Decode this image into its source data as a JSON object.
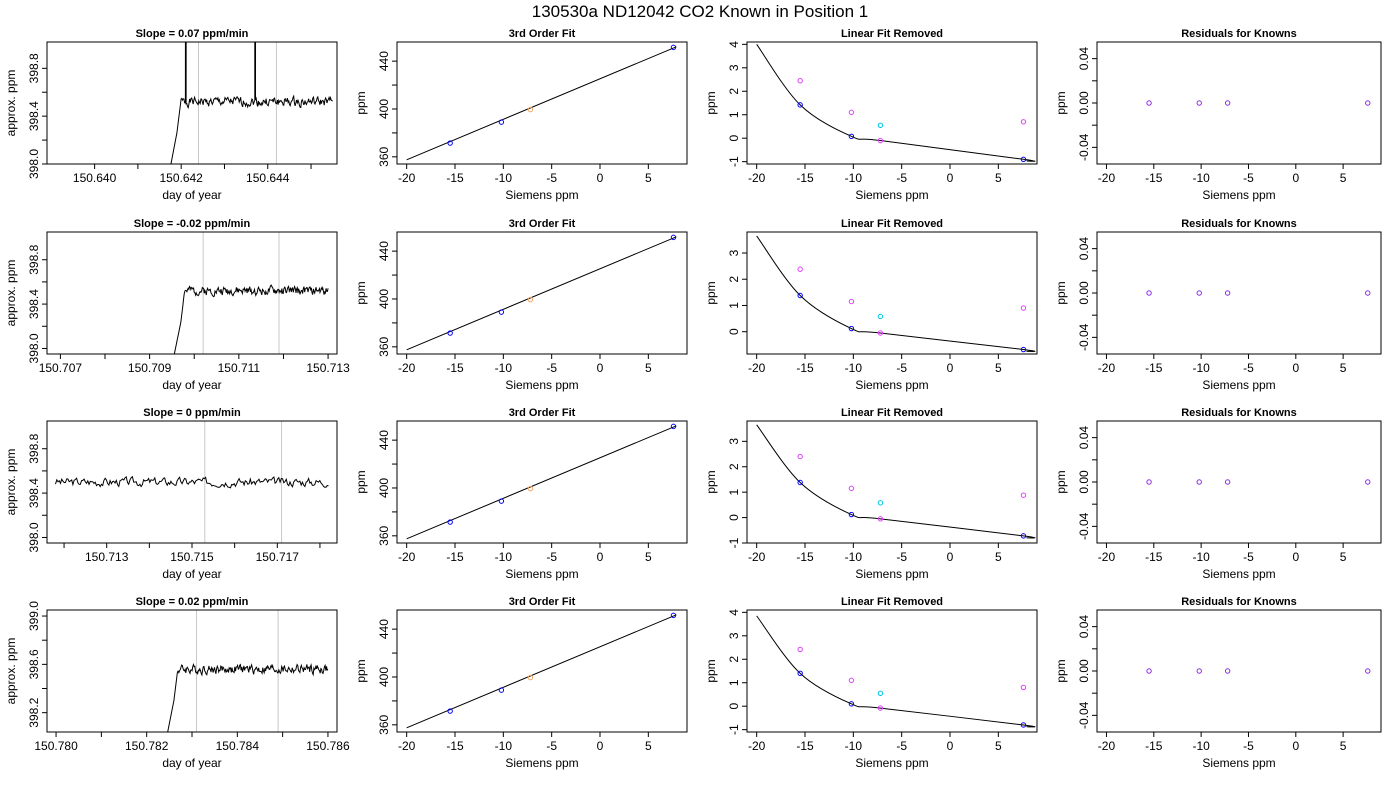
{
  "figure": {
    "title": "130530a     ND12042   CO2 Known in Position  1"
  },
  "colors": {
    "line": "#000000",
    "vline": "#c8c8c8",
    "blue": "#0000ff",
    "purple": "#8a2be2",
    "magenta": "#e040fb",
    "cyan": "#00c8e6",
    "orange": "#f4a460"
  },
  "chart_data": [
    {
      "id": "r0c0",
      "type": "line",
      "title": "Slope =  0.07  ppm/min",
      "xlabel": "day of year",
      "ylabel": "approx. ppm",
      "xlim": [
        150.6389,
        150.6456
      ],
      "ylim": [
        398.0,
        399.02
      ],
      "xticks": [
        150.64,
        150.641,
        150.642,
        150.643,
        150.644,
        150.645
      ],
      "xticklabels": [
        "150.640",
        "",
        "150.642",
        "",
        "150.644",
        ""
      ],
      "yticks": [
        398.0,
        398.2,
        398.4,
        398.6,
        398.8
      ],
      "yticklabels": [
        "398.0",
        "",
        "398.4",
        "",
        "398.8"
      ],
      "vlines": [
        150.6424,
        150.6442
      ],
      "trace": {
        "x_start": 150.6415,
        "x_end": 150.6455,
        "rise_end": 150.6419,
        "baseline": 398.52,
        "noise": 0.06,
        "spikes": [
          150.6421,
          150.6437
        ],
        "seed": 1
      }
    },
    {
      "id": "r1c0",
      "type": "line",
      "title": "Slope =  -0.02  ppm/min",
      "xlabel": "day of year",
      "ylabel": "approx. ppm",
      "xlim": [
        150.7067,
        150.7132
      ],
      "ylim": [
        397.95,
        399.05
      ],
      "xticks": [
        150.707,
        150.708,
        150.709,
        150.71,
        150.711,
        150.712,
        150.713
      ],
      "xticklabels": [
        "150.707",
        "",
        "150.709",
        "",
        "150.711",
        "",
        "150.713"
      ],
      "yticks": [
        398.0,
        398.2,
        398.4,
        398.6,
        398.8
      ],
      "yticklabels": [
        "398.0",
        "",
        "398.4",
        "",
        "398.8"
      ],
      "vlines": [
        150.7102,
        150.7119
      ],
      "trace": {
        "x_start": 150.7093,
        "x_end": 150.713,
        "rise_end": 150.7097,
        "baseline": 398.52,
        "noise": 0.06,
        "spikes": [],
        "seed": 2
      }
    },
    {
      "id": "r2c0",
      "type": "line",
      "title": "Slope =  0  ppm/min",
      "xlabel": "day of year",
      "ylabel": "approx. ppm",
      "xlim": [
        150.7116,
        150.7184
      ],
      "ylim": [
        397.95,
        399.05
      ],
      "xticks": [
        150.712,
        150.713,
        150.714,
        150.715,
        150.716,
        150.717,
        150.718
      ],
      "xticklabels": [
        "",
        "150.713",
        "",
        "150.715",
        "",
        "150.717",
        ""
      ],
      "yticks": [
        398.0,
        398.2,
        398.4,
        398.6,
        398.8
      ],
      "yticklabels": [
        "398.0",
        "",
        "398.4",
        "",
        "398.8"
      ],
      "vlines": [
        150.7153,
        150.7171
      ],
      "trace": {
        "x_start": 150.7118,
        "x_end": 150.7182,
        "rise_end": 150.7118,
        "baseline": 398.5,
        "noise": 0.06,
        "spikes": [],
        "seed": 3
      }
    },
    {
      "id": "r3c0",
      "type": "line",
      "title": "Slope =  0.02  ppm/min",
      "xlabel": "day of year",
      "ylabel": "approx. ppm",
      "xlim": [
        150.7798,
        150.7862
      ],
      "ylim": [
        398.04,
        399.05
      ],
      "xticks": [
        150.78,
        150.781,
        150.782,
        150.783,
        150.784,
        150.785,
        150.786
      ],
      "xticklabels": [
        "150.780",
        "",
        "150.782",
        "",
        "150.784",
        "",
        "150.786"
      ],
      "yticks": [
        398.2,
        398.4,
        398.6,
        398.8,
        399.0
      ],
      "yticklabels": [
        "398.2",
        "",
        "398.6",
        "",
        "399.0"
      ],
      "vlines": [
        150.7831,
        150.7849
      ],
      "trace": {
        "x_start": 150.7822,
        "x_end": 150.786,
        "rise_end": 150.7826,
        "baseline": 398.56,
        "noise": 0.06,
        "spikes": [],
        "seed": 4
      }
    },
    {
      "id": "fit",
      "type": "scatter",
      "title": "3rd Order Fit",
      "xlabel": "Siemens ppm",
      "ylabel": "ppm",
      "xlim": [
        -21.0,
        9.0
      ],
      "ylim": [
        354,
        456
      ],
      "xticks": [
        -20,
        -15,
        -10,
        -5,
        0,
        5
      ],
      "xticklabels": [
        "-20",
        "-15",
        "-10",
        "-5",
        "0",
        "5"
      ],
      "yticks": [
        360,
        380,
        400,
        420,
        440
      ],
      "yticklabels": [
        "360",
        "",
        "400",
        "",
        "440"
      ],
      "line": {
        "x": [
          -20.0,
          7.9
        ],
        "y": [
          357.5,
          452.0
        ]
      },
      "points": [
        {
          "x": -15.5,
          "y": 371.5,
          "color": "blue"
        },
        {
          "x": -10.2,
          "y": 389.0,
          "color": "blue"
        },
        {
          "x": -7.2,
          "y": 399.5,
          "color": "orange"
        },
        {
          "x": 7.6,
          "y": 451.5,
          "color": "blue"
        }
      ]
    },
    {
      "id": "r0c2",
      "type": "scatter",
      "title": "Linear Fit Removed",
      "xlabel": "Siemens ppm",
      "ylabel": "ppm",
      "xlim": [
        -21.0,
        9.0
      ],
      "ylim": [
        -1.1,
        4.1
      ],
      "xticks": [
        -20,
        -15,
        -10,
        -5,
        0,
        5
      ],
      "xticklabels": [
        "-20",
        "-15",
        "-10",
        "-5",
        "0",
        "5"
      ],
      "yticks": [
        -1,
        0,
        1,
        2,
        3,
        4
      ],
      "yticklabels": [
        "-1",
        "0",
        "1",
        "2",
        "3",
        "4"
      ],
      "curve": {
        "x": [
          -20,
          -15.5,
          -10.2,
          -7.2,
          7.6,
          7.9
        ],
        "y": [
          4.0,
          1.42,
          0.08,
          -0.1,
          -0.9,
          -0.97
        ]
      },
      "points": [
        {
          "x": -15.5,
          "y": 2.45,
          "color": "magenta"
        },
        {
          "x": -10.2,
          "y": 1.1,
          "color": "magenta"
        },
        {
          "x": -7.2,
          "y": 0.55,
          "color": "cyan"
        },
        {
          "x": 7.6,
          "y": 0.7,
          "color": "magenta"
        },
        {
          "x": -15.5,
          "y": 1.42,
          "color": "blue"
        },
        {
          "x": -10.2,
          "y": 0.08,
          "color": "blue"
        },
        {
          "x": -7.2,
          "y": -0.1,
          "color": "magenta"
        },
        {
          "x": 7.6,
          "y": -0.9,
          "color": "blue"
        }
      ]
    },
    {
      "id": "r1c2",
      "type": "scatter",
      "title": "Linear Fit Removed",
      "xlabel": "Siemens ppm",
      "ylabel": "ppm",
      "xlim": [
        -21.0,
        9.0
      ],
      "ylim": [
        -0.85,
        3.8
      ],
      "xticks": [
        -20,
        -15,
        -10,
        -5,
        0,
        5
      ],
      "xticklabels": [
        "-20",
        "-15",
        "-10",
        "-5",
        "0",
        "5"
      ],
      "yticks": [
        0,
        1,
        2,
        3
      ],
      "yticklabels": [
        "0",
        "1",
        "2",
        "3"
      ],
      "curve": {
        "x": [
          -20,
          -15.5,
          -10.2,
          -7.2,
          7.6,
          7.9
        ],
        "y": [
          3.65,
          1.38,
          0.12,
          -0.05,
          -0.68,
          -0.75
        ]
      },
      "points": [
        {
          "x": -15.5,
          "y": 2.38,
          "color": "magenta"
        },
        {
          "x": -10.2,
          "y": 1.15,
          "color": "magenta"
        },
        {
          "x": -7.2,
          "y": 0.58,
          "color": "cyan"
        },
        {
          "x": 7.6,
          "y": 0.9,
          "color": "magenta"
        },
        {
          "x": -15.5,
          "y": 1.38,
          "color": "blue"
        },
        {
          "x": -10.2,
          "y": 0.12,
          "color": "blue"
        },
        {
          "x": -7.2,
          "y": -0.05,
          "color": "magenta"
        },
        {
          "x": 7.6,
          "y": -0.68,
          "color": "blue"
        }
      ]
    },
    {
      "id": "r2c2",
      "type": "scatter",
      "title": "Linear Fit Removed",
      "xlabel": "Siemens ppm",
      "ylabel": "ppm",
      "xlim": [
        -21.0,
        9.0
      ],
      "ylim": [
        -1.0,
        3.8
      ],
      "xticks": [
        -20,
        -15,
        -10,
        -5,
        0,
        5
      ],
      "xticklabels": [
        "-20",
        "-15",
        "-10",
        "-5",
        "0",
        "5"
      ],
      "yticks": [
        -1,
        0,
        1,
        2,
        3
      ],
      "yticklabels": [
        "-1",
        "0",
        "1",
        "2",
        "3"
      ],
      "curve": {
        "x": [
          -20,
          -15.5,
          -10.2,
          -7.2,
          7.6,
          7.9
        ],
        "y": [
          3.65,
          1.38,
          0.12,
          -0.05,
          -0.72,
          -0.8
        ]
      },
      "points": [
        {
          "x": -15.5,
          "y": 2.4,
          "color": "magenta"
        },
        {
          "x": -10.2,
          "y": 1.15,
          "color": "magenta"
        },
        {
          "x": -7.2,
          "y": 0.58,
          "color": "cyan"
        },
        {
          "x": 7.6,
          "y": 0.88,
          "color": "magenta"
        },
        {
          "x": -15.5,
          "y": 1.38,
          "color": "blue"
        },
        {
          "x": -10.2,
          "y": 0.12,
          "color": "blue"
        },
        {
          "x": -7.2,
          "y": -0.05,
          "color": "magenta"
        },
        {
          "x": 7.6,
          "y": -0.72,
          "color": "blue"
        }
      ]
    },
    {
      "id": "r3c2",
      "type": "scatter",
      "title": "Linear Fit Removed",
      "xlabel": "Siemens ppm",
      "ylabel": "ppm",
      "xlim": [
        -21.0,
        9.0
      ],
      "ylim": [
        -1.1,
        4.1
      ],
      "xticks": [
        -20,
        -15,
        -10,
        -5,
        0,
        5
      ],
      "xticklabels": [
        "-20",
        "-15",
        "-10",
        "-5",
        "0",
        "5"
      ],
      "yticks": [
        -1,
        0,
        1,
        2,
        3,
        4
      ],
      "yticklabels": [
        "-1",
        "0",
        "1",
        "2",
        "3",
        "4"
      ],
      "curve": {
        "x": [
          -20,
          -15.5,
          -10.2,
          -7.2,
          7.6,
          7.9
        ],
        "y": [
          3.85,
          1.4,
          0.1,
          -0.08,
          -0.8,
          -0.88
        ]
      },
      "points": [
        {
          "x": -15.5,
          "y": 2.42,
          "color": "magenta"
        },
        {
          "x": -10.2,
          "y": 1.1,
          "color": "magenta"
        },
        {
          "x": -7.2,
          "y": 0.55,
          "color": "cyan"
        },
        {
          "x": 7.6,
          "y": 0.8,
          "color": "magenta"
        },
        {
          "x": -15.5,
          "y": 1.4,
          "color": "blue"
        },
        {
          "x": -10.2,
          "y": 0.1,
          "color": "blue"
        },
        {
          "x": -7.2,
          "y": -0.08,
          "color": "magenta"
        },
        {
          "x": 7.6,
          "y": -0.8,
          "color": "blue"
        }
      ]
    },
    {
      "id": "resid",
      "type": "scatter",
      "title": "Residuals for Knowns",
      "xlabel": "Siemens ppm",
      "ylabel": "ppm",
      "xlim": [
        -21.0,
        9.0
      ],
      "ylim": [
        -0.055,
        0.055
      ],
      "xticks": [
        -20,
        -15,
        -10,
        -5,
        0,
        5
      ],
      "xticklabels": [
        "-20",
        "-15",
        "-10",
        "-5",
        "0",
        "5"
      ],
      "yticks": [
        -0.04,
        -0.02,
        0.0,
        0.02,
        0.04
      ],
      "yticklabels": [
        "-0.04",
        "",
        "0.00",
        "",
        "0.04"
      ],
      "points": [
        {
          "x": -15.5,
          "y": 0.0,
          "color": "purple"
        },
        {
          "x": -10.2,
          "y": 0.0,
          "color": "purple"
        },
        {
          "x": -7.2,
          "y": 0.0,
          "color": "purple"
        },
        {
          "x": 7.6,
          "y": 0.0,
          "color": "purple"
        }
      ]
    }
  ],
  "grid_layout": [
    [
      "r0c0",
      "fit",
      "r0c2",
      "resid"
    ],
    [
      "r1c0",
      "fit",
      "r1c2",
      "resid"
    ],
    [
      "r2c0",
      "fit",
      "r2c2",
      "resid"
    ],
    [
      "r3c0",
      "fit",
      "r3c2",
      "resid"
    ]
  ]
}
